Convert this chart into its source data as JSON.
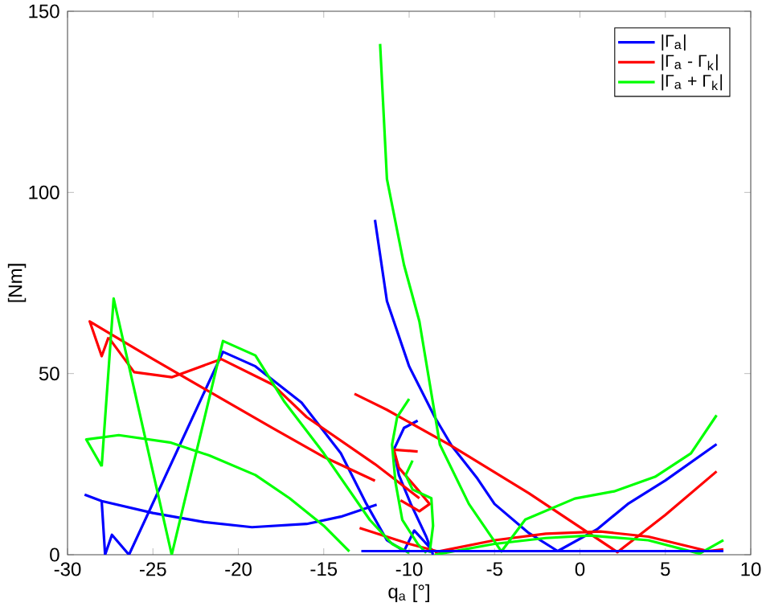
{
  "chart_data": {
    "type": "line",
    "xlabel": "q$_{a}$ [°]",
    "ylabel": "[Nm]",
    "xlim": [
      -30,
      10
    ],
    "ylim": [
      0,
      150
    ],
    "xticks": [
      -30,
      -25,
      -20,
      -15,
      -10,
      -5,
      0,
      5,
      10
    ],
    "yticks": [
      0,
      50,
      100,
      150
    ],
    "legend": "top right",
    "grid": false,
    "marker": "none",
    "line_style": "solid",
    "series": [
      {
        "name": "|Γ$_{a}$|",
        "color": "#0000ff",
        "x": [
          -29,
          -28,
          -25,
          -22,
          -19.2,
          -16,
          -14,
          -11.9,
          null,
          -28,
          -27.8,
          -27.4,
          -26.4,
          -20.9,
          -19,
          -16.3,
          -14,
          -12.5,
          -11.3,
          -10.3,
          -9.7,
          -8.6,
          null,
          -12,
          -11.3,
          -10,
          -8.5,
          -7.5,
          -6,
          -5,
          -3,
          -1.3,
          1,
          2.8,
          5,
          8,
          null,
          -9.5,
          -10.3,
          -10.9,
          -10.6,
          -9.9,
          -9,
          -8.6
        ],
        "values": [
          16.6,
          14.8,
          11.5,
          9,
          7.6,
          8.5,
          10.5,
          13.8,
          null,
          14.8,
          0,
          5.5,
          0,
          56,
          52,
          42,
          28,
          14,
          4,
          1,
          6.7,
          1,
          null,
          92.4,
          70,
          52,
          38,
          30,
          21,
          14,
          6,
          1,
          7,
          14,
          20.5,
          30.5,
          null,
          37,
          35,
          29,
          22,
          14,
          5,
          0
        ]
      },
      {
        "name": "|Γ$_{a}$ - Γ$_{k}$|",
        "color": "#ff0000",
        "x": [
          -27.6,
          -28,
          -28.7,
          -27.5,
          -25,
          -21.7,
          -18,
          -15,
          -12,
          null,
          -27.6,
          -26.1,
          -23.9,
          -21,
          -18,
          -16,
          -12,
          -9.4,
          null,
          -13.2,
          -11.3,
          -7.5,
          -3,
          2.2,
          5,
          8,
          null,
          -9.5,
          -10.9,
          -10.6,
          -9.5,
          -8.8,
          -9.4,
          -10.5,
          null,
          -12.9,
          -10,
          -8,
          null,
          -8.5,
          -5,
          -2,
          1.2,
          4,
          7.5,
          8.4
        ],
        "values": [
          60,
          54.8,
          64.4,
          61,
          54,
          45,
          35,
          27,
          20.4,
          null,
          60,
          50.4,
          49,
          54,
          47,
          38,
          25,
          15.6,
          null,
          44.4,
          40,
          30,
          17,
          0.7,
          11,
          23,
          null,
          28.5,
          29,
          24,
          18,
          14,
          12,
          15,
          null,
          7.4,
          3,
          0.5,
          null,
          0.7,
          4,
          5.8,
          6.4,
          5,
          1,
          1.5
        ]
      },
      {
        "name": "|Γ$_{a}$ + Γ$_{k}$|",
        "color": "#00ff00",
        "x": [
          -11.7,
          -11.3,
          -10.3,
          -9.4,
          -8.2,
          -6.5,
          -4.6,
          -3.2,
          -0.3,
          2,
          4.4,
          6.5,
          8,
          null,
          -28,
          -28.9,
          -27,
          -24,
          -21.7,
          -19,
          -17,
          -15,
          -13.5,
          null,
          -28,
          -27.3,
          -23.9,
          -20.9,
          -19,
          -17.3,
          -15,
          -12.3,
          -11,
          -10,
          null,
          -10,
          -10.7,
          -11,
          -10.8,
          -10.4,
          -9.5,
          -9,
          null,
          -9.8,
          -10.2,
          -9.8,
          -8.7,
          -8.6,
          -8.8,
          null,
          -8.5,
          -5,
          -2,
          0.6,
          4,
          7,
          8.4
        ],
        "values": [
          141,
          103.7,
          80,
          64.4,
          30.4,
          14,
          0.9,
          9.7,
          15.5,
          17.5,
          21.5,
          28,
          38.5,
          null,
          24.4,
          31.8,
          33,
          31,
          27.4,
          22,
          15.6,
          8,
          0.9,
          null,
          24.4,
          70.7,
          0,
          59,
          55,
          42.2,
          28,
          9.6,
          3,
          0.5,
          null,
          43,
          38,
          30.4,
          20,
          9.6,
          3,
          0.5,
          null,
          26,
          22,
          18,
          15.6,
          8,
          0.5,
          null,
          0,
          3,
          4.6,
          5.3,
          4,
          0.3,
          4
        ]
      },
      {
        "color": "#0000ff",
        "x": [
          -12.8,
          -8,
          -4,
          0,
          4,
          8.4
        ],
        "values": [
          1,
          1,
          1,
          1,
          1,
          1
        ]
      }
    ]
  }
}
